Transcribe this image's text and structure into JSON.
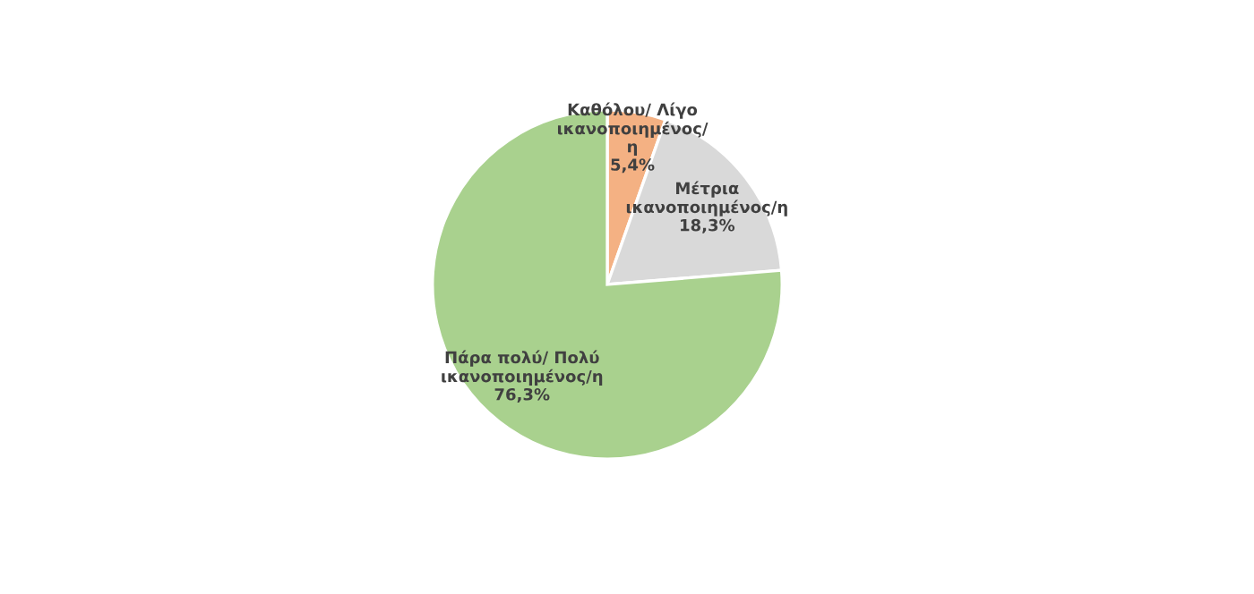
{
  "chart_data": {
    "type": "pie",
    "categories": [
      "Καθόλου/ Λίγο\nικανοποιημένος/\nη",
      "Μέτρια\nικανοποιημένος/η",
      "Πάρα πολύ/ Πολύ\nικανοποιημένος/η"
    ],
    "values": [
      5.4,
      18.3,
      76.3
    ],
    "value_labels": [
      "5,4%",
      "18,3%",
      "76,3%"
    ],
    "colors": [
      "#f4b183",
      "#d9d9d9",
      "#a9d18e"
    ],
    "legend": false
  }
}
